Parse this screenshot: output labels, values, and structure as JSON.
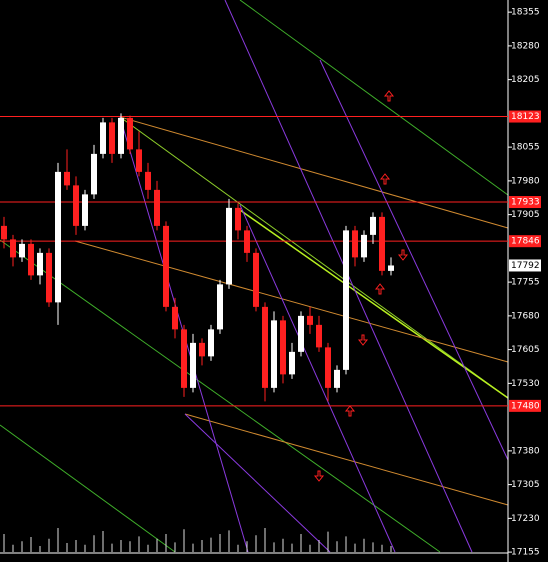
{
  "chart_data": {
    "type": "candlestick",
    "ohlc": [
      [
        17880,
        17900,
        17830,
        17850
      ],
      [
        17850,
        17860,
        17790,
        17810
      ],
      [
        17810,
        17850,
        17800,
        17840
      ],
      [
        17840,
        17850,
        17760,
        17770
      ],
      [
        17770,
        17830,
        17750,
        17820
      ],
      [
        17820,
        17830,
        17700,
        17710
      ],
      [
        17710,
        18020,
        17660,
        18000
      ],
      [
        18000,
        18050,
        17960,
        17970
      ],
      [
        17970,
        17990,
        17860,
        17880
      ],
      [
        17880,
        17960,
        17870,
        17950
      ],
      [
        17950,
        18060,
        17940,
        18040
      ],
      [
        18040,
        18120,
        18030,
        18110
      ],
      [
        18110,
        18120,
        18020,
        18040
      ],
      [
        18040,
        18130,
        18030,
        18120
      ],
      [
        18120,
        18125,
        18040,
        18050
      ],
      [
        18050,
        18090,
        17990,
        18000
      ],
      [
        18000,
        18020,
        17940,
        17960
      ],
      [
        17960,
        17980,
        17870,
        17880
      ],
      [
        17880,
        17890,
        17690,
        17700
      ],
      [
        17700,
        17720,
        17630,
        17650
      ],
      [
        17650,
        17660,
        17500,
        17520
      ],
      [
        17520,
        17640,
        17510,
        17620
      ],
      [
        17620,
        17630,
        17570,
        17590
      ],
      [
        17590,
        17660,
        17580,
        17650
      ],
      [
        17650,
        17760,
        17640,
        17750
      ],
      [
        17750,
        17940,
        17740,
        17920
      ],
      [
        17920,
        17930,
        17850,
        17870
      ],
      [
        17870,
        17880,
        17800,
        17820
      ],
      [
        17820,
        17830,
        17690,
        17700
      ],
      [
        17700,
        17710,
        17490,
        17520
      ],
      [
        17520,
        17690,
        17510,
        17670
      ],
      [
        17670,
        17680,
        17530,
        17550
      ],
      [
        17550,
        17620,
        17540,
        17600
      ],
      [
        17600,
        17690,
        17590,
        17680
      ],
      [
        17680,
        17700,
        17640,
        17660
      ],
      [
        17660,
        17680,
        17600,
        17610
      ],
      [
        17610,
        17620,
        17490,
        17520
      ],
      [
        17520,
        17570,
        17510,
        17560
      ],
      [
        17560,
        17880,
        17550,
        17870
      ],
      [
        17870,
        17880,
        17790,
        17810
      ],
      [
        17810,
        17870,
        17800,
        17860
      ],
      [
        17860,
        17910,
        17840,
        17900
      ],
      [
        17900,
        17910,
        17770,
        17780
      ],
      [
        17780,
        17810,
        17770,
        17792
      ]
    ],
    "up_color": "#ffffff",
    "down_color": "#ff2020",
    "volume": [
      30,
      12,
      18,
      25,
      10,
      22,
      40,
      15,
      20,
      12,
      28,
      35,
      14,
      20,
      18,
      26,
      12,
      22,
      30,
      16,
      38,
      14,
      20,
      24,
      30,
      36,
      12,
      18,
      28,
      40,
      16,
      22,
      14,
      30,
      12,
      20,
      34,
      18,
      26,
      14,
      22,
      16,
      12,
      10
    ],
    "volume_lim": [
      0,
      100
    ],
    "ylim": [
      17133,
      18382
    ],
    "yticks": [
      18355,
      18280,
      18205,
      18055,
      17980,
      17905,
      17755,
      17680,
      17605,
      17530,
      17380,
      17305,
      17230,
      17155
    ],
    "levels": [
      {
        "value": 18123,
        "label": "18123"
      },
      {
        "value": 17933,
        "label": "17933"
      },
      {
        "value": 17846,
        "label": "17846"
      },
      {
        "value": 17480,
        "label": "17480"
      }
    ],
    "level_color": "#ff2020",
    "last_price": 17792
  }
}
